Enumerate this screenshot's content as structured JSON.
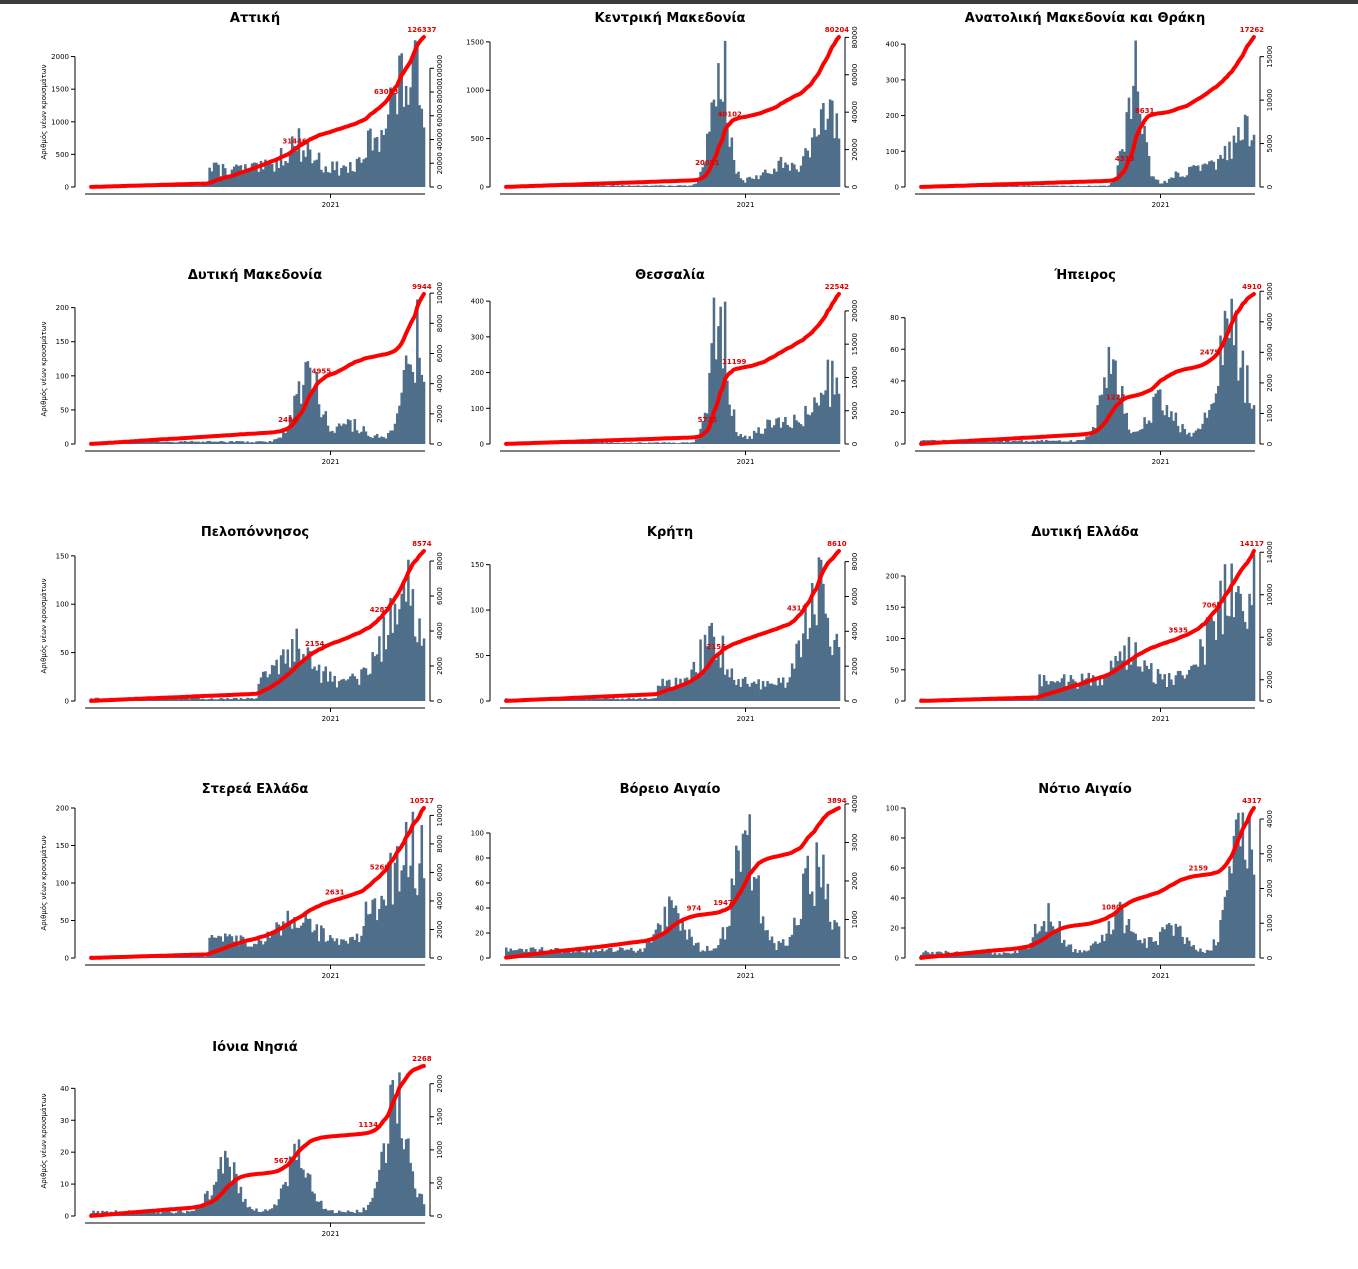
{
  "bar_color": "#4e6e8a",
  "line_color": "#ff0000",
  "ylabel": "Αριθμός νέων κρουσμάτων",
  "chart_data": [
    {
      "type": "bar",
      "title": "Αττική",
      "x_tick": "2021",
      "ylim": [
        0,
        2300
      ],
      "y_ticks": [
        0,
        500,
        1000,
        1500,
        2000
      ],
      "ylim2": [
        0,
        126337
      ],
      "y2_ticks": [
        0,
        20000,
        40000,
        60000,
        80000,
        100000
      ],
      "profile": "attica",
      "peak": 2250,
      "cum_labels": [
        {
          "pos": 0.62,
          "text": "31446"
        },
        {
          "pos": 0.89,
          "text": "63053"
        },
        {
          "pos": 1.0,
          "text": "126337"
        }
      ],
      "ylabel_shown": true
    },
    {
      "type": "bar",
      "title": "Κεντρική Μακεδονία",
      "x_tick": "2021",
      "ylim": [
        0,
        1550
      ],
      "y_ticks": [
        0,
        500,
        1000,
        1500
      ],
      "ylim2": [
        0,
        80204
      ],
      "y2_ticks": [
        0,
        20000,
        40000,
        60000,
        80000
      ],
      "profile": "north",
      "peak": 1510,
      "cum_labels": [
        {
          "pos": 0.61,
          "text": "20051"
        },
        {
          "pos": 0.68,
          "text": "40102"
        },
        {
          "pos": 1.0,
          "text": "80204"
        }
      ],
      "ylabel_shown": false
    },
    {
      "type": "bar",
      "title": "Ανατολική Μακεδονία και Θράκη",
      "x_tick": "2021",
      "ylim": [
        0,
        420
      ],
      "y_ticks": [
        0,
        100,
        200,
        300,
        400
      ],
      "ylim2": [
        0,
        17262
      ],
      "y2_ticks": [
        0,
        5000,
        10000,
        15000
      ],
      "profile": "north",
      "peak": 410,
      "cum_labels": [
        {
          "pos": 0.62,
          "text": "4315"
        },
        {
          "pos": 0.68,
          "text": "8631"
        },
        {
          "pos": 1.0,
          "text": "17262"
        }
      ],
      "ylabel_shown": false
    },
    {
      "type": "bar",
      "title": "Δυτική Μακεδονία",
      "x_tick": "2021",
      "ylim": [
        0,
        220
      ],
      "y_ticks": [
        0,
        50,
        100,
        150,
        200
      ],
      "ylim2": [
        0,
        9944
      ],
      "y2_ticks": [
        0,
        2000,
        4000,
        6000,
        8000,
        10000
      ],
      "profile": "westmac",
      "peak": 212,
      "cum_labels": [
        {
          "pos": 0.6,
          "text": "2486"
        },
        {
          "pos": 0.7,
          "text": "4955"
        },
        {
          "pos": 1.0,
          "text": "9944"
        }
      ],
      "ylabel_shown": true
    },
    {
      "type": "bar",
      "title": "Θεσσαλία",
      "x_tick": "2021",
      "ylim": [
        0,
        420
      ],
      "y_ticks": [
        0,
        100,
        200,
        300,
        400
      ],
      "ylim2": [
        0,
        22542
      ],
      "y2_ticks": [
        0,
        5000,
        10000,
        15000,
        20000
      ],
      "profile": "north",
      "peak": 410,
      "cum_labels": [
        {
          "pos": 0.61,
          "text": "5735"
        },
        {
          "pos": 0.69,
          "text": "11199"
        },
        {
          "pos": 1.0,
          "text": "22542"
        }
      ],
      "ylabel_shown": false
    },
    {
      "type": "bar",
      "title": "Ήπειρος",
      "x_tick": "2021",
      "ylim": [
        0,
        95
      ],
      "y_ticks": [
        0,
        20,
        40,
        60,
        80
      ],
      "ylim2": [
        0,
        4910
      ],
      "y2_ticks": [
        0,
        1000,
        2000,
        3000,
        4000,
        5000
      ],
      "profile": "epirus",
      "peak": 92,
      "cum_labels": [
        {
          "pos": 0.59,
          "text": "1227"
        },
        {
          "pos": 0.87,
          "text": "2475"
        },
        {
          "pos": 1.0,
          "text": "4910"
        }
      ],
      "ylabel_shown": false
    },
    {
      "type": "bar",
      "title": "Πελοπόννησος",
      "x_tick": "2021",
      "ylim": [
        0,
        155
      ],
      "y_ticks": [
        0,
        50,
        100,
        150
      ],
      "ylim2": [
        0,
        8574
      ],
      "y2_ticks": [
        0,
        2000,
        4000,
        6000,
        8000
      ],
      "profile": "pelop",
      "peak": 146,
      "cum_labels": [
        {
          "pos": 0.68,
          "text": "2154"
        },
        {
          "pos": 0.87,
          "text": "4287"
        },
        {
          "pos": 1.0,
          "text": "8574"
        }
      ],
      "ylabel_shown": true
    },
    {
      "type": "bar",
      "title": "Κρήτη",
      "x_tick": "2021",
      "ylim": [
        0,
        165
      ],
      "y_ticks": [
        0,
        50,
        100,
        150
      ],
      "ylim2": [
        0,
        8610
      ],
      "y2_ticks": [
        0,
        2000,
        4000,
        6000,
        8000
      ],
      "profile": "crete",
      "peak": 158,
      "cum_labels": [
        {
          "pos": 0.64,
          "text": "2156"
        },
        {
          "pos": 0.88,
          "text": "4311"
        },
        {
          "pos": 1.0,
          "text": "8610"
        }
      ],
      "ylabel_shown": false
    },
    {
      "type": "bar",
      "title": "Δυτική Ελλάδα",
      "x_tick": "2021",
      "ylim": [
        0,
        240
      ],
      "y_ticks": [
        0,
        50,
        100,
        150,
        200
      ],
      "ylim2": [
        0,
        14117
      ],
      "y2_ticks": [
        0,
        2000,
        6000,
        10000,
        14000
      ],
      "profile": "attica",
      "peak": 235,
      "cum_labels": [
        {
          "pos": 0.78,
          "text": "3535"
        },
        {
          "pos": 0.88,
          "text": "7061"
        },
        {
          "pos": 1.0,
          "text": "14117"
        }
      ],
      "ylabel_shown": false
    },
    {
      "type": "bar",
      "title": "Στερεά Ελλάδα",
      "x_tick": "2021",
      "ylim": [
        0,
        200
      ],
      "y_ticks": [
        0,
        50,
        100,
        150,
        200
      ],
      "ylim2": [
        0,
        10517
      ],
      "y2_ticks": [
        0,
        2000,
        4000,
        6000,
        8000,
        10000
      ],
      "profile": "attica",
      "peak": 195,
      "cum_labels": [
        {
          "pos": 0.74,
          "text": "2631"
        },
        {
          "pos": 0.87,
          "text": "5260"
        },
        {
          "pos": 1.0,
          "text": "10517"
        }
      ],
      "ylabel_shown": true
    },
    {
      "type": "bar",
      "title": "Βόρειο Αιγαίο",
      "x_tick": "2021",
      "ylim": [
        0,
        120
      ],
      "y_ticks": [
        0,
        20,
        40,
        60,
        80,
        100
      ],
      "ylim2": [
        0,
        3894
      ],
      "y2_ticks": [
        0,
        1000,
        2000,
        3000,
        4000
      ],
      "profile": "naegean",
      "peak": 115,
      "cum_labels": [
        {
          "pos": 0.57,
          "text": "974"
        },
        {
          "pos": 0.66,
          "text": "1947"
        },
        {
          "pos": 1.0,
          "text": "3894"
        }
      ],
      "ylabel_shown": false
    },
    {
      "type": "bar",
      "title": "Νότιο Αιγαίο",
      "x_tick": "2021",
      "ylim": [
        0,
        100
      ],
      "y_ticks": [
        0,
        20,
        40,
        60,
        80,
        100
      ],
      "ylim2": [
        0,
        4317
      ],
      "y2_ticks": [
        0,
        1000,
        2000,
        3000,
        4000
      ],
      "profile": "saegean",
      "peak": 97,
      "cum_labels": [
        {
          "pos": 0.58,
          "text": "1080"
        },
        {
          "pos": 0.84,
          "text": "2159"
        },
        {
          "pos": 1.0,
          "text": "4317"
        }
      ],
      "ylabel_shown": false
    },
    {
      "type": "bar",
      "title": "Ιόνια Νησιά",
      "x_tick": "2021",
      "ylim": [
        0,
        47
      ],
      "y_ticks": [
        0,
        10,
        20,
        30,
        40
      ],
      "ylim2": [
        0,
        2268
      ],
      "y2_ticks": [
        0,
        500,
        1000,
        1500,
        2000
      ],
      "profile": "ionian",
      "peak": 45,
      "cum_labels": [
        {
          "pos": 0.58,
          "text": "567"
        },
        {
          "pos": 0.84,
          "text": "1134"
        },
        {
          "pos": 1.0,
          "text": "2268"
        }
      ],
      "ylabel_shown": true
    }
  ]
}
